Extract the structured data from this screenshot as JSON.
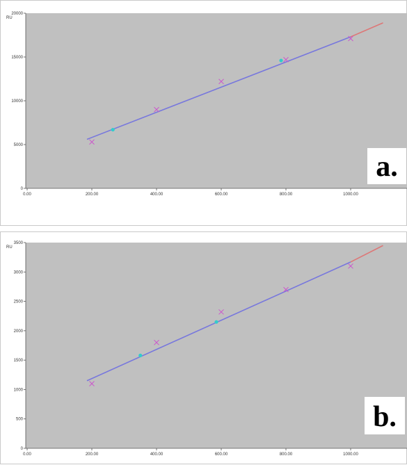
{
  "chart_data": [
    {
      "type": "scatter",
      "panel_label": "a.",
      "x_unit": "",
      "y_unit": "RU",
      "xlim": [
        0,
        1200
      ],
      "ylim": [
        0,
        20000
      ],
      "x_ticks": [
        {
          "value": 0,
          "label": "0.00"
        },
        {
          "value": 200,
          "label": "200.00"
        },
        {
          "value": 400,
          "label": "400.00"
        },
        {
          "value": 600,
          "label": "600.00"
        },
        {
          "value": 800,
          "label": "800.00"
        },
        {
          "value": 1000,
          "label": "1000.00"
        }
      ],
      "y_ticks": [
        {
          "value": 0,
          "label": "0"
        },
        {
          "value": 5000,
          "label": "5000"
        },
        {
          "value": 10000,
          "label": "10000"
        },
        {
          "value": 15000,
          "label": "15000"
        },
        {
          "value": 20000,
          "label": "20000"
        }
      ],
      "series": [
        {
          "role": "standards",
          "marker": "x",
          "color": "#cc55cc",
          "x": [
            200,
            400,
            600,
            800,
            1000
          ],
          "y": [
            5300,
            9000,
            12200,
            14700,
            17100
          ]
        },
        {
          "role": "samples",
          "marker": "dot",
          "color": "#33cccc",
          "x": [
            265,
            785
          ],
          "y": [
            6700,
            14600
          ]
        },
        {
          "role": "fit",
          "color": "#7777dd",
          "x": [
            185,
            1000
          ],
          "y": [
            5600,
            17300
          ]
        },
        {
          "role": "extrapolation",
          "color": "#dd7777",
          "x": [
            1000,
            1100
          ],
          "y": [
            17300,
            18900
          ]
        }
      ],
      "background": "#c0c0c0",
      "grid": false
    },
    {
      "type": "scatter",
      "panel_label": "b.",
      "x_unit": "",
      "y_unit": "RU",
      "xlim": [
        0,
        1200
      ],
      "ylim": [
        0,
        3500
      ],
      "x_ticks": [
        {
          "value": 0,
          "label": "0.00"
        },
        {
          "value": 200,
          "label": "200.00"
        },
        {
          "value": 400,
          "label": "400.00"
        },
        {
          "value": 600,
          "label": "600.00"
        },
        {
          "value": 800,
          "label": "800.00"
        },
        {
          "value": 1000,
          "label": "1000.00"
        }
      ],
      "y_ticks": [
        {
          "value": 0,
          "label": "0"
        },
        {
          "value": 500,
          "label": "500"
        },
        {
          "value": 1000,
          "label": "1000"
        },
        {
          "value": 1500,
          "label": "1500"
        },
        {
          "value": 2000,
          "label": "2000"
        },
        {
          "value": 2500,
          "label": "2500"
        },
        {
          "value": 3000,
          "label": "3000"
        },
        {
          "value": 3500,
          "label": "3500"
        }
      ],
      "series": [
        {
          "role": "standards",
          "marker": "x",
          "color": "#cc55cc",
          "x": [
            200,
            400,
            600,
            800,
            1000
          ],
          "y": [
            1100,
            1800,
            2320,
            2700,
            3100
          ]
        },
        {
          "role": "samples",
          "marker": "dot",
          "color": "#33cccc",
          "x": [
            350,
            585
          ],
          "y": [
            1580,
            2150
          ]
        },
        {
          "role": "fit",
          "color": "#7777dd",
          "x": [
            185,
            1000
          ],
          "y": [
            1150,
            3170
          ]
        },
        {
          "role": "extrapolation",
          "color": "#dd7777",
          "x": [
            1000,
            1100
          ],
          "y": [
            3170,
            3450
          ]
        }
      ],
      "background": "#c0c0c0",
      "grid": false
    }
  ]
}
